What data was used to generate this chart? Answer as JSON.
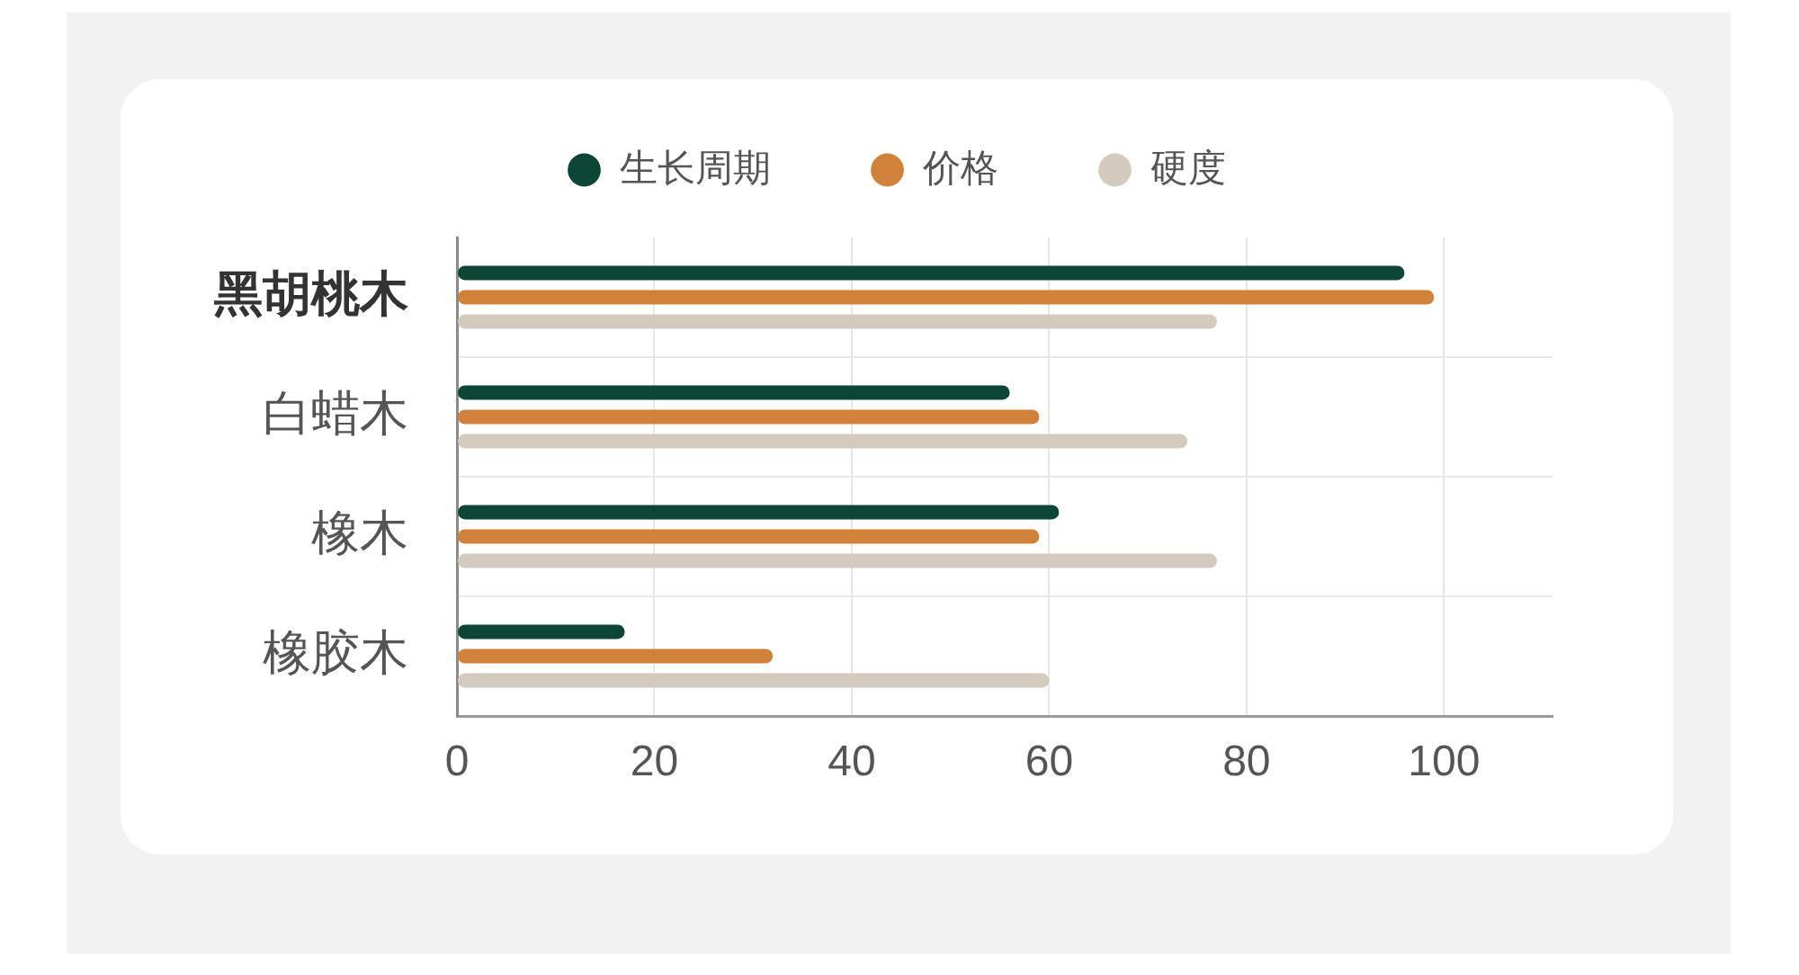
{
  "chart_data": {
    "type": "bar",
    "orientation": "horizontal",
    "categories": [
      "黑胡桃木",
      "白蜡木",
      "橡木",
      "橡胶木"
    ],
    "series": [
      {
        "name": "生长周期",
        "color": "#0c4636",
        "values": [
          96,
          56,
          61,
          17
        ]
      },
      {
        "name": "价格",
        "color": "#d2813a",
        "values": [
          99,
          59,
          59,
          32
        ]
      },
      {
        "name": "硬度",
        "color": "#d3cbbd",
        "values": [
          77,
          74,
          77,
          60
        ]
      }
    ],
    "xlim": [
      0,
      111
    ],
    "xticks": [
      0,
      20,
      40,
      60,
      80,
      100
    ],
    "grid": true,
    "legend": "top"
  }
}
